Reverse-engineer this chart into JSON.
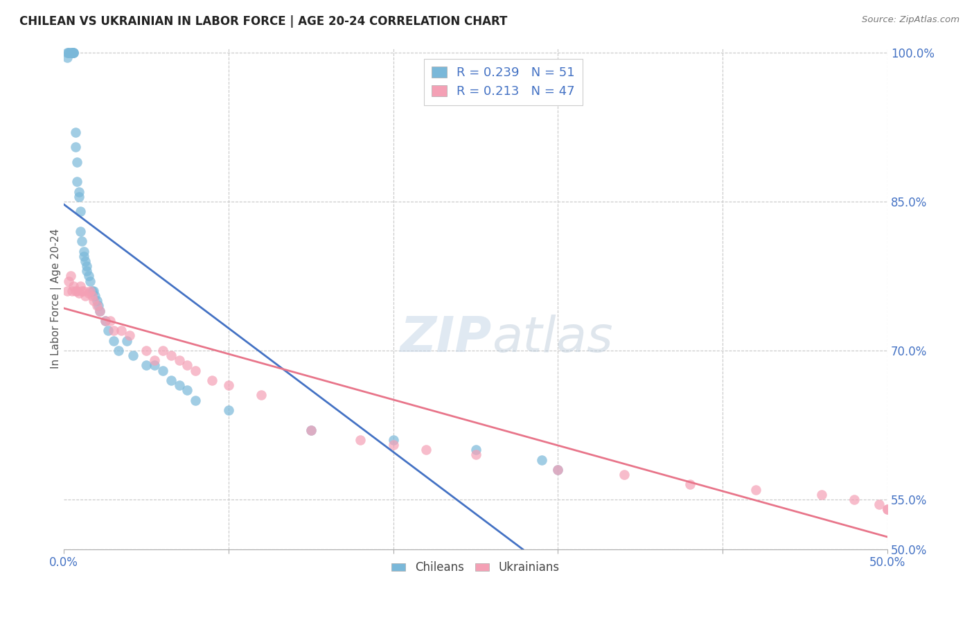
{
  "title": "CHILEAN VS UKRAINIAN IN LABOR FORCE | AGE 20-24 CORRELATION CHART",
  "source": "Source: ZipAtlas.com",
  "ylabel": "In Labor Force | Age 20-24",
  "xlim": [
    0.0,
    0.5
  ],
  "ylim": [
    0.5,
    1.005
  ],
  "yticks": [
    0.5,
    0.55,
    0.7,
    0.85,
    1.0
  ],
  "yticklabels": [
    "50.0%",
    "55.0%",
    "70.0%",
    "85.0%",
    "100.0%"
  ],
  "legend_r_blue": "R = 0.239",
  "legend_n_blue": "N = 51",
  "legend_r_pink": "R = 0.213",
  "legend_n_pink": "N = 47",
  "blue_color": "#7ab8d9",
  "pink_color": "#f4a0b5",
  "line_blue": "#4472c4",
  "line_pink": "#e8758a",
  "legend_text_color": "#4472c4",
  "axis_tick_color": "#4472c4",
  "grid_color": "#c8c8c8",
  "background_color": "#ffffff",
  "watermark_zip": "ZIP",
  "watermark_atlas": "atlas",
  "blue_x": [
    0.002,
    0.002,
    0.003,
    0.003,
    0.004,
    0.005,
    0.005,
    0.006,
    0.006,
    0.006,
    0.007,
    0.007,
    0.008,
    0.008,
    0.009,
    0.009,
    0.01,
    0.01,
    0.011,
    0.012,
    0.012,
    0.013,
    0.014,
    0.014,
    0.015,
    0.016,
    0.017,
    0.018,
    0.019,
    0.02,
    0.021,
    0.022,
    0.025,
    0.027,
    0.03,
    0.033,
    0.038,
    0.042,
    0.05,
    0.055,
    0.06,
    0.065,
    0.07,
    0.075,
    0.08,
    0.1,
    0.15,
    0.2,
    0.25,
    0.29,
    0.3
  ],
  "blue_y": [
    0.995,
    1.0,
    1.0,
    1.0,
    1.0,
    1.0,
    1.0,
    1.0,
    1.0,
    1.0,
    0.92,
    0.905,
    0.89,
    0.87,
    0.855,
    0.86,
    0.84,
    0.82,
    0.81,
    0.8,
    0.795,
    0.79,
    0.785,
    0.78,
    0.775,
    0.77,
    0.76,
    0.76,
    0.755,
    0.75,
    0.745,
    0.74,
    0.73,
    0.72,
    0.71,
    0.7,
    0.71,
    0.695,
    0.685,
    0.685,
    0.68,
    0.67,
    0.665,
    0.66,
    0.65,
    0.64,
    0.62,
    0.61,
    0.6,
    0.59,
    0.58
  ],
  "pink_x": [
    0.002,
    0.003,
    0.004,
    0.005,
    0.006,
    0.007,
    0.008,
    0.009,
    0.01,
    0.011,
    0.012,
    0.013,
    0.015,
    0.016,
    0.017,
    0.018,
    0.02,
    0.022,
    0.025,
    0.028,
    0.03,
    0.035,
    0.04,
    0.05,
    0.055,
    0.06,
    0.065,
    0.07,
    0.075,
    0.08,
    0.09,
    0.1,
    0.12,
    0.15,
    0.18,
    0.2,
    0.22,
    0.25,
    0.3,
    0.34,
    0.38,
    0.42,
    0.46,
    0.48,
    0.495,
    0.5,
    0.5
  ],
  "pink_y": [
    0.76,
    0.77,
    0.775,
    0.76,
    0.765,
    0.76,
    0.76,
    0.758,
    0.765,
    0.76,
    0.76,
    0.755,
    0.758,
    0.76,
    0.755,
    0.75,
    0.745,
    0.74,
    0.73,
    0.73,
    0.72,
    0.72,
    0.715,
    0.7,
    0.69,
    0.7,
    0.695,
    0.69,
    0.685,
    0.68,
    0.67,
    0.665,
    0.655,
    0.62,
    0.61,
    0.605,
    0.6,
    0.595,
    0.58,
    0.575,
    0.565,
    0.56,
    0.555,
    0.55,
    0.545,
    0.54,
    0.54
  ]
}
